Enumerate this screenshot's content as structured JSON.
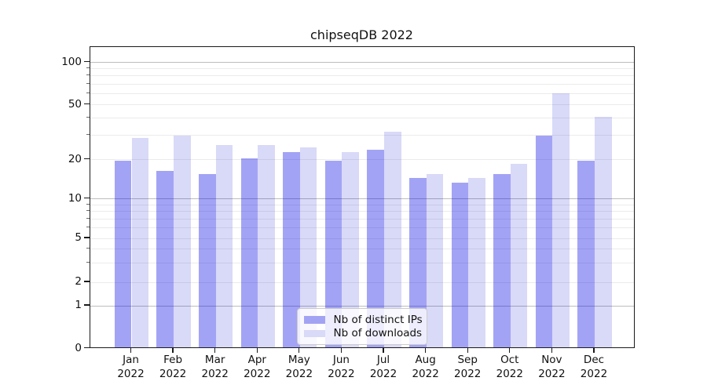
{
  "title": "chipseqDB 2022",
  "chart_data": {
    "type": "bar",
    "title": "chipseqDB 2022",
    "categories": [
      "Jan 2022",
      "Feb 2022",
      "Mar 2022",
      "Apr 2022",
      "May 2022",
      "Jun 2022",
      "Jul 2022",
      "Aug 2022",
      "Sep 2022",
      "Oct 2022",
      "Nov 2022",
      "Dec 2022"
    ],
    "series": [
      {
        "name": "Nb of distinct IPs",
        "values": [
          19,
          16,
          15,
          20,
          22,
          19,
          23,
          14,
          13,
          15,
          29,
          19
        ],
        "fill": "rgba(0,0,226,0.36)",
        "swatch": "#a3a3f4"
      },
      {
        "name": "Nb of downloads",
        "values": [
          28,
          29,
          25,
          25,
          24,
          22,
          31,
          15,
          14,
          18,
          59,
          40
        ],
        "fill": "rgba(0,0,210,0.15)",
        "swatch": "#d9d9f8"
      }
    ],
    "xlabel": "",
    "ylabel": "",
    "yscale": "log above 1, linear 0-1 (symlog-like)",
    "ylim": [
      0,
      130
    ],
    "yticks": [
      {
        "v": 100,
        "label": "100",
        "major": true
      },
      {
        "v": 50,
        "label": "50",
        "major": false
      },
      {
        "v": 20,
        "label": "20",
        "major": false
      },
      {
        "v": 10,
        "label": "10",
        "major": true
      },
      {
        "v": 5,
        "label": "5",
        "major": false
      },
      {
        "v": 2,
        "label": "2",
        "major": false
      },
      {
        "v": 1,
        "label": "1",
        "major": true
      },
      {
        "v": 0,
        "label": "0",
        "major": true
      }
    ],
    "minor_gridlines": [
      90,
      80,
      70,
      60,
      40,
      30,
      9,
      8,
      7,
      6,
      4,
      3
    ],
    "grid": "horizontal, major + minor",
    "legend_position": "lower center"
  },
  "colors": {
    "grid_major": "#bdbdbd",
    "grid_minor": "#ebebeb",
    "axis": "#1a1a1a",
    "background": "#ffffff"
  }
}
